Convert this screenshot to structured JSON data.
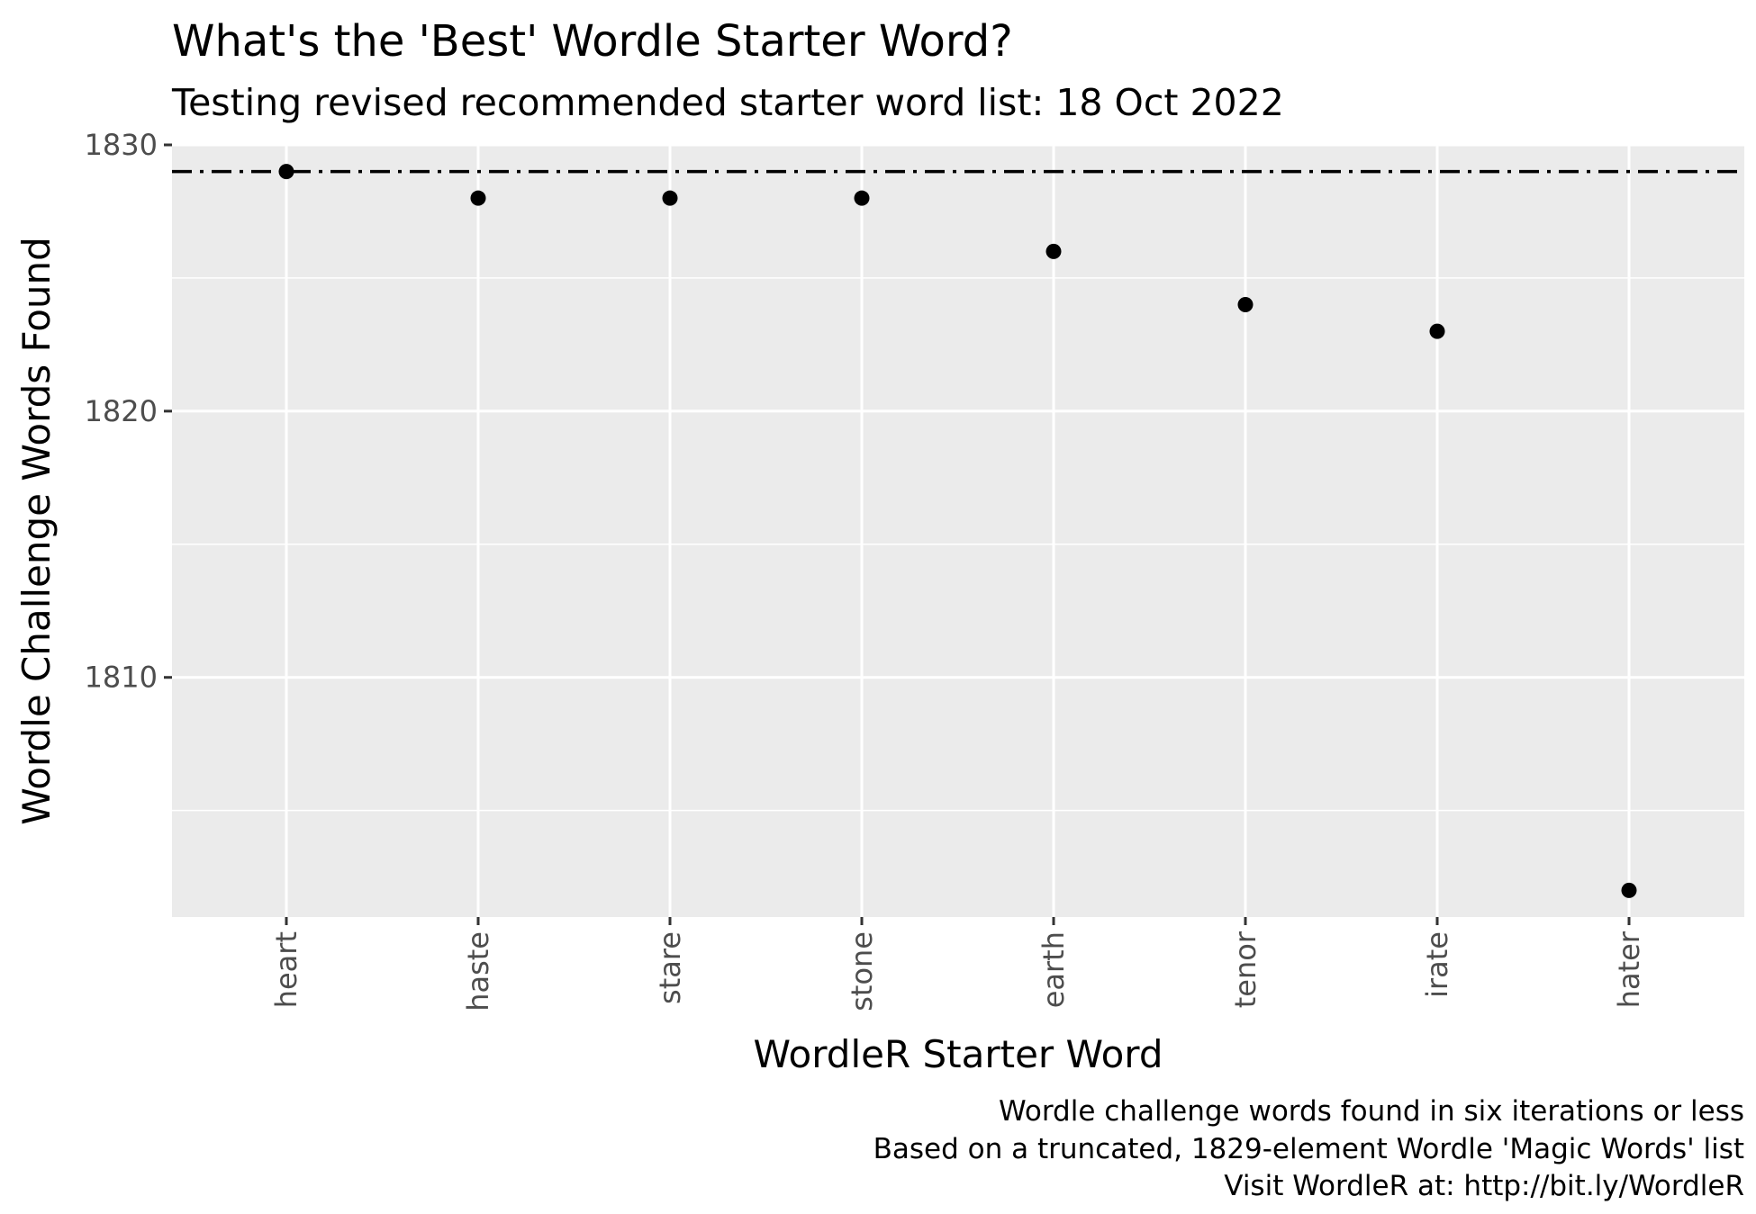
{
  "chart_data": {
    "type": "scatter",
    "title": "What's the 'Best' Wordle Starter Word?",
    "subtitle": "Testing revised recommended starter word list: 18 Oct 2022",
    "xlabel": "WordleR Starter Word",
    "ylabel": "Wordle Challenge Words Found",
    "categories": [
      "heart",
      "haste",
      "stare",
      "stone",
      "earth",
      "tenor",
      "irate",
      "hater"
    ],
    "values": [
      1829,
      1828,
      1828,
      1828,
      1826,
      1824,
      1823,
      1802
    ],
    "ylim": [
      1801,
      1830
    ],
    "yticks": [
      1810,
      1820,
      1830
    ],
    "reference_line": {
      "y": 1829,
      "style": "dotdash"
    },
    "caption": [
      "Wordle challenge words found in six iterations or less",
      "Based on a truncated, 1829-element Wordle 'Magic Words' list",
      "Visit WordleR at: http://bit.ly/WordleR"
    ],
    "grid": true,
    "panel_color": "#ebebeb",
    "point_color": "#000000"
  }
}
